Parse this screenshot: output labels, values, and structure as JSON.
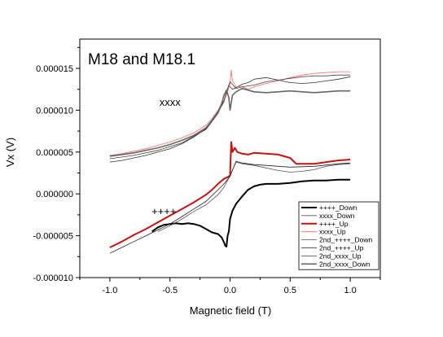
{
  "chart_data": {
    "type": "line",
    "title": "M18 and M18.1",
    "xlabel": "Magnetic field (T)",
    "ylabel": "Vx (V)",
    "xlim": [
      -1.25,
      1.25
    ],
    "ylim": [
      -1e-05,
      1.85e-05
    ],
    "x_ticks": [
      -1.0,
      -0.5,
      0.0,
      0.5,
      1.0
    ],
    "x_tick_labels": [
      "-1.0",
      "-0.5",
      "0.0",
      "0.5",
      "1.0"
    ],
    "y_ticks": [
      -1e-05,
      -5e-06,
      0.0,
      5e-06,
      1e-05,
      1.5e-05
    ],
    "y_tick_labels": [
      "-0.000010",
      "-0.000005",
      "0.000000",
      "0.000005",
      "0.000010",
      "0.000015"
    ],
    "grid": false,
    "legend_position": "bottom-right",
    "annotations": [
      {
        "text": "xxxx",
        "x": -0.5,
        "y": 1.05e-05
      },
      {
        "text": "++++",
        "x": -0.55,
        "y": -2.5e-06
      }
    ],
    "series": [
      {
        "name": "++++_Down",
        "color": "#000000",
        "width": 2.0,
        "x": [
          -0.65,
          -0.6,
          -0.55,
          -0.5,
          -0.45,
          -0.4,
          -0.35,
          -0.3,
          -0.25,
          -0.2,
          -0.15,
          -0.1,
          -0.07,
          -0.05,
          -0.04,
          -0.03,
          -0.02,
          -0.01,
          0.0,
          0.02,
          0.05,
          0.1,
          0.15,
          0.2,
          0.25,
          0.3,
          0.4,
          0.5,
          0.6,
          0.7,
          0.8,
          0.9,
          1.0
        ],
        "y": [
          -4.5e-06,
          -4e-06,
          -3.7e-06,
          -3.6e-06,
          -3.5e-06,
          -3.6e-06,
          -3.5e-06,
          -3.6e-06,
          -3.8e-06,
          -4.2e-06,
          -4.6e-06,
          -4.8e-06,
          -5.2e-06,
          -5.8e-06,
          -6.2e-06,
          -6.3e-06,
          -5e-06,
          -4.5e-06,
          -3e-06,
          -2e-06,
          -1.2e-06,
          -3e-07,
          5e-07,
          9e-07,
          1.1e-06,
          1.2e-06,
          1.2e-06,
          1.3e-06,
          1.5e-06,
          1.6e-06,
          1.6e-06,
          1.7e-06,
          1.7e-06
        ]
      },
      {
        "name": "xxxx_Down",
        "color": "#333333",
        "width": 0.8,
        "x": [
          -1.0,
          -0.9,
          -0.8,
          -0.7,
          -0.6,
          -0.5,
          -0.4,
          -0.3,
          -0.2,
          -0.15,
          -0.1,
          -0.05,
          -0.03,
          -0.01,
          0.0,
          0.02,
          0.05,
          0.1,
          0.15,
          0.2,
          0.3,
          0.4,
          0.5,
          0.6,
          0.7,
          0.8,
          0.9,
          1.0
        ],
        "y": [
          3.8e-06,
          4e-06,
          4.3e-06,
          4.6e-06,
          5e-06,
          5.4e-06,
          6e-06,
          6.8e-06,
          7.8e-06,
          8.7e-06,
          9.8e-06,
          1.1e-05,
          1.22e-05,
          1.3e-05,
          1.28e-05,
          1.25e-05,
          1.27e-05,
          1.31e-05,
          1.33e-05,
          1.37e-05,
          1.39e-05,
          1.36e-05,
          1.33e-05,
          1.32e-05,
          1.33e-05,
          1.35e-05,
          1.37e-05,
          1.4e-05
        ]
      },
      {
        "name": "++++_Up",
        "color": "#c81010",
        "width": 2.0,
        "x": [
          -1.0,
          -0.9,
          -0.8,
          -0.7,
          -0.6,
          -0.5,
          -0.4,
          -0.3,
          -0.2,
          -0.15,
          -0.1,
          -0.05,
          -0.02,
          0.0,
          0.01,
          0.02,
          0.04,
          0.06,
          0.1,
          0.15,
          0.2,
          0.3,
          0.4,
          0.5,
          0.55,
          0.6,
          0.7,
          0.8,
          0.9,
          1.0
        ],
        "y": [
          -6.4e-06,
          -5.7e-06,
          -4.9e-06,
          -4.2e-06,
          -3.4e-06,
          -2.6e-06,
          -1.8e-06,
          -1e-06,
          -1e-07,
          5e-07,
          1.2e-06,
          1.8e-06,
          2e-06,
          2.2e-06,
          6.2e-06,
          5e-06,
          5.5e-06,
          5e-06,
          4.8e-06,
          4.7e-06,
          4.9e-06,
          4.8e-06,
          4.7e-06,
          4.3e-06,
          3.6e-06,
          3.6e-06,
          3.6e-06,
          3.8e-06,
          4e-06,
          4.1e-06
        ]
      },
      {
        "name": "xxxx_Up",
        "color": "#ff6666",
        "width": 0.8,
        "x": [
          -1.0,
          -0.9,
          -0.8,
          -0.7,
          -0.6,
          -0.5,
          -0.4,
          -0.3,
          -0.2,
          -0.15,
          -0.1,
          -0.05,
          -0.02,
          0.0,
          0.01,
          0.02,
          0.05,
          0.1,
          0.15,
          0.2,
          0.3,
          0.4,
          0.5,
          0.6,
          0.7,
          0.8,
          0.9,
          1.0
        ],
        "y": [
          4.6e-06,
          4.8e-06,
          5.1e-06,
          5.4e-06,
          5.8e-06,
          6.2e-06,
          6.7e-06,
          7.3e-06,
          8.2e-06,
          9e-06,
          1e-05,
          1.11e-05,
          1.22e-05,
          1.32e-05,
          1.48e-05,
          1.35e-05,
          1.28e-05,
          1.28e-05,
          1.25e-05,
          1.28e-05,
          1.32e-05,
          1.35e-05,
          1.39e-05,
          1.42e-05,
          1.44e-05,
          1.45e-05,
          1.46e-05,
          1.46e-05
        ]
      },
      {
        "name": "2nd_++++_Down",
        "color": "#555555",
        "width": 0.8,
        "x": [
          -0.6,
          -0.5,
          -0.4,
          -0.3,
          -0.2,
          -0.1,
          -0.05,
          0.0,
          0.05,
          0.1,
          0.2,
          0.3,
          0.4,
          0.5,
          0.6,
          0.7,
          0.8,
          0.9,
          1.0
        ],
        "y": [
          -4.5e-06,
          -3.8e-06,
          -3e-06,
          -2.1e-06,
          -1.3e-06,
          -1e-07,
          8e-07,
          2.2e-06,
          3.8e-06,
          3.6e-06,
          3.4e-06,
          3.1e-06,
          2.8e-06,
          2.6e-06,
          2.7e-06,
          2.9e-06,
          3.3e-06,
          3.5e-06,
          3.6e-06
        ]
      },
      {
        "name": "2nd_++++_Up",
        "color": "#222222",
        "width": 0.8,
        "x": [
          -1.0,
          -0.9,
          -0.8,
          -0.7,
          -0.6,
          -0.5,
          -0.4,
          -0.3,
          -0.2,
          -0.1,
          -0.05,
          0.0,
          0.05,
          0.1,
          0.2,
          0.3,
          0.5,
          0.7,
          0.9,
          1.0
        ],
        "y": [
          -7.1e-06,
          -6.4e-06,
          -5.7e-06,
          -5e-06,
          -4.3e-06,
          -3.6e-06,
          -2.7e-06,
          -1.8e-06,
          -9e-07,
          5e-07,
          1.2e-06,
          2.1e-06,
          3.9e-06,
          3.7e-06,
          3.5e-06,
          3.4e-06,
          3.2e-06,
          3.3e-06,
          3.6e-06,
          3.7e-06
        ]
      },
      {
        "name": "2nd_xxxx_Up",
        "color": "#444444",
        "width": 0.8,
        "x": [
          -1.0,
          -0.8,
          -0.6,
          -0.4,
          -0.2,
          -0.1,
          -0.05,
          0.0,
          0.05,
          0.1,
          0.2,
          0.3,
          0.4,
          0.5,
          0.6,
          0.7,
          0.8,
          0.9,
          1.0
        ],
        "y": [
          4.2e-06,
          4.6e-06,
          5.2e-06,
          6.1e-06,
          7.7e-06,
          9.6e-06,
          1.12e-05,
          1.34e-05,
          1.26e-05,
          1.28e-05,
          1.3e-05,
          1.34e-05,
          1.36e-05,
          1.38e-05,
          1.4e-05,
          1.41e-05,
          1.41e-05,
          1.42e-05,
          1.42e-05
        ]
      },
      {
        "name": "2nd_xxxx_Down",
        "color": "#666666",
        "width": 1.6,
        "x": [
          -1.0,
          -0.9,
          -0.8,
          -0.7,
          -0.6,
          -0.5,
          -0.4,
          -0.3,
          -0.2,
          -0.15,
          -0.1,
          -0.07,
          -0.05,
          -0.03,
          -0.01,
          0.0,
          0.02,
          0.05,
          0.1,
          0.15,
          0.2,
          0.3,
          0.4,
          0.5,
          0.6,
          0.7,
          0.8,
          0.9,
          1.0
        ],
        "y": [
          4.5e-06,
          4.7e-06,
          4.9e-06,
          5.2e-06,
          5.5e-06,
          5.9e-06,
          6.4e-06,
          7e-06,
          7.9e-06,
          8.8e-06,
          9.8e-06,
          1.08e-05,
          1.18e-05,
          1.24e-05,
          1.15e-05,
          1e-05,
          1.18e-05,
          1.22e-05,
          1.26e-05,
          1.24e-05,
          1.22e-05,
          1.21e-05,
          1.22e-05,
          1.23e-05,
          1.22e-05,
          1.21e-05,
          1.22e-05,
          1.23e-05,
          1.23e-05
        ]
      }
    ]
  }
}
